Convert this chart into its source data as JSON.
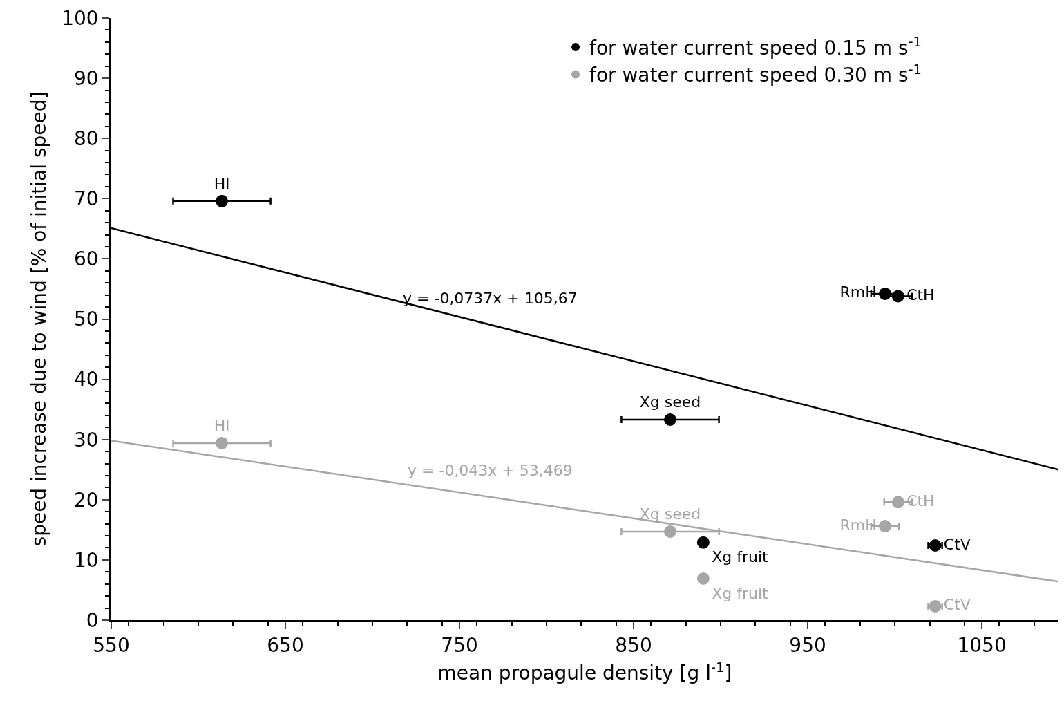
{
  "chart_data": {
    "type": "scatter",
    "xlabel": "mean propagule density [g l$^{-1}$]",
    "ylabel": "speed increase due to wind [% of initial speed]",
    "xlim": [
      550,
      1094
    ],
    "xticks": [
      550,
      650,
      750,
      850,
      950,
      1050
    ],
    "ylim": [
      0,
      100
    ],
    "yticks": [
      0,
      10,
      20,
      30,
      40,
      50,
      60,
      70,
      80,
      90,
      100
    ],
    "grid": false,
    "legend": "top right",
    "marker": "circle",
    "series": [
      {
        "name": "for water current speed 0.15 m s$^{-1}$",
        "color": "#000000",
        "x": [
          613.5,
          994.4,
          1001.9,
          871,
          890,
          1023.2
        ],
        "values": [
          69.6,
          54.2,
          53.8,
          33.3,
          12.9,
          12.4
        ],
        "xerrors": [
          28,
          8,
          8,
          28,
          null,
          4
        ],
        "value_labels": [
          "Hl",
          "RmH",
          "CtH",
          "Xg seed",
          "Xg fruit",
          "CtV"
        ]
      },
      {
        "name": "for water current speed 0.30 m s$^{-1}$",
        "color": "#a6a6a6",
        "x": [
          613.5,
          994.4,
          1001.9,
          871,
          890,
          1023.2
        ],
        "values": [
          29.4,
          15.6,
          19.6,
          14.7,
          6.9,
          2.3
        ],
        "xerrors": [
          28,
          8,
          8,
          28,
          null,
          4
        ],
        "value_labels": [
          "Hl",
          "RmH",
          "CtH",
          "Xg seed",
          "Xg fruit",
          "CtV"
        ]
      },
      {
        "type": "line",
        "marker": "none",
        "color": "#000000",
        "x": [
          550,
          1094
        ],
        "values": [
          65.1,
          25.0
        ]
      },
      {
        "type": "line",
        "marker": "none",
        "color": "#a6a6a6",
        "x": [
          550,
          1094
        ],
        "values": [
          29.8,
          6.4
        ]
      }
    ],
    "annotations": [
      "y = -0,0737x + 105,67",
      "y = -0,043x + 53,469"
    ]
  }
}
